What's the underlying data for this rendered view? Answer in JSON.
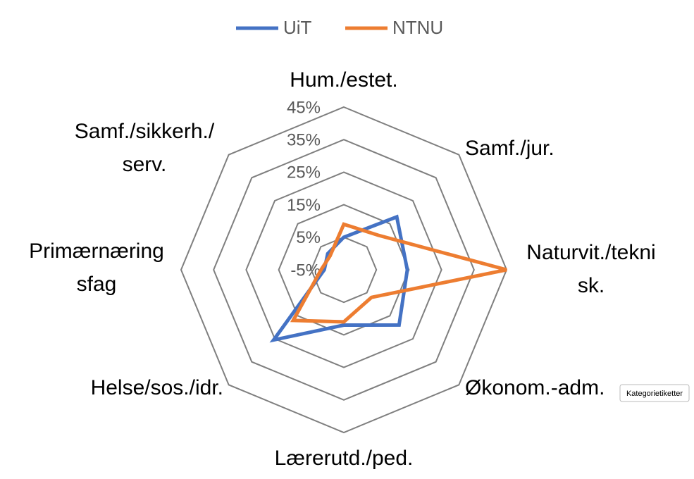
{
  "chart_data": {
    "type": "radar",
    "categories": [
      "Hum./estet.",
      "Samf./jur.",
      "Naturvit./tekni\nsk.",
      "Økonom.-adm.",
      "Lærerutd./ped.",
      "Helse/sos./idr.",
      "Primærnæring\nsfag",
      "Samf./sikkerh./\nserv."
    ],
    "series": [
      {
        "name": "UiT",
        "color": "#4472c4",
        "values": [
          5,
          18,
          14.5,
          19,
          12,
          25.5,
          1,
          2
        ]
      },
      {
        "name": "NTNU",
        "color": "#ed7d31",
        "values": [
          9,
          10,
          45,
          7,
          11,
          17,
          2,
          1
        ]
      }
    ],
    "ylim": [
      -5,
      45
    ],
    "yticks": [
      {
        "value": -5,
        "label": "-5%"
      },
      {
        "value": 5,
        "label": "5%"
      },
      {
        "value": 15,
        "label": "15%"
      },
      {
        "value": 25,
        "label": "25%"
      },
      {
        "value": 35,
        "label": "35%"
      },
      {
        "value": 45,
        "label": "45%"
      }
    ],
    "grid": true
  },
  "tooltip": "Kategorietiketter"
}
